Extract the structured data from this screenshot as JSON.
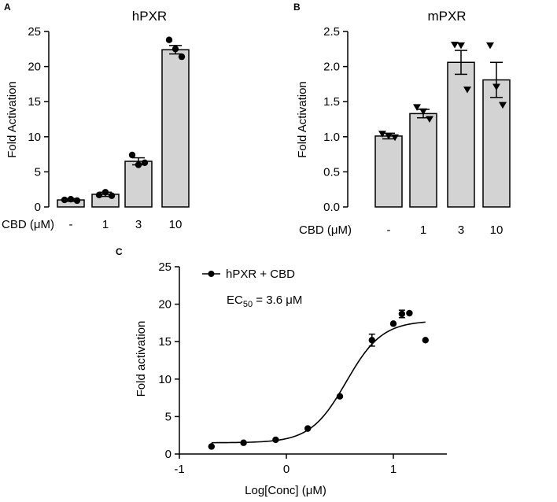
{
  "chart_data": [
    {
      "panel": "A",
      "type": "bar",
      "title": "hPXR",
      "ylabel": "Fold Activation",
      "xlabel": "CBD (μM)",
      "ylim": [
        0,
        25
      ],
      "yticks": [
        "0",
        "5",
        "10",
        "15",
        "20",
        "25"
      ],
      "yticks_values": [
        0,
        5,
        10,
        15,
        20,
        25
      ],
      "categories": [
        "-",
        "1",
        "3",
        "10"
      ],
      "values": [
        1.0,
        1.8,
        6.5,
        22.4
      ],
      "errors": [
        0.2,
        0.3,
        0.5,
        0.6
      ],
      "points": [
        [
          1.0,
          1.1,
          0.9
        ],
        [
          1.7,
          2.1,
          1.6
        ],
        [
          7.4,
          6.0,
          6.3
        ],
        [
          23.8,
          22.5,
          21.4
        ]
      ],
      "marker": "circle",
      "bar_color": "#d3d3d3"
    },
    {
      "panel": "B",
      "type": "bar",
      "title": "mPXR",
      "ylabel": "Fold Activation",
      "xlabel": "CBD (μM)",
      "ylim": [
        0,
        2.5
      ],
      "yticks": [
        "0.0",
        "0.5",
        "1.0",
        "1.5",
        "2.0",
        "2.5"
      ],
      "yticks_values": [
        0,
        0.5,
        1.0,
        1.5,
        2.0,
        2.5
      ],
      "categories": [
        "-",
        "1",
        "3",
        "10"
      ],
      "values": [
        1.01,
        1.33,
        2.06,
        1.81
      ],
      "errors": [
        0.04,
        0.06,
        0.17,
        0.25
      ],
      "points": [
        [
          1.04,
          1.01,
          0.99
        ],
        [
          1.42,
          1.36,
          1.25
        ],
        [
          2.31,
          2.3,
          1.67
        ],
        [
          2.3,
          1.71,
          1.45
        ]
      ],
      "marker": "triangle-down",
      "bar_color": "#d3d3d3"
    },
    {
      "panel": "C",
      "type": "line",
      "ylabel": "Fold activation",
      "xlabel": "Log[Conc] (μM)",
      "xlim": [
        -1,
        1.5
      ],
      "ylim": [
        0,
        25
      ],
      "xticks": [
        "-1",
        "0",
        "1"
      ],
      "xticks_values": [
        -1,
        0,
        1
      ],
      "yticks": [
        "0",
        "5",
        "10",
        "15",
        "20",
        "25"
      ],
      "yticks_values": [
        0,
        5,
        10,
        15,
        20,
        25
      ],
      "legend": "hPXR + CBD",
      "annotation": {
        "prefix": "EC",
        "subscript": "50",
        "suffix": " = 3.6 μM"
      },
      "series": [
        {
          "name": "hPXR + CBD",
          "x": [
            -0.7,
            -0.4,
            -0.1,
            0.2,
            0.5,
            0.8,
            1.0,
            1.08,
            1.15,
            1.3
          ],
          "y": [
            1.0,
            1.5,
            1.9,
            3.4,
            7.7,
            15.2,
            17.4,
            18.7,
            18.8,
            15.2
          ],
          "errors": [
            0,
            0,
            0,
            0,
            0,
            0.8,
            0,
            0.5,
            0,
            0
          ]
        }
      ],
      "fit": {
        "bottom": 1.5,
        "top": 17.8,
        "log_ec50": 0.56,
        "hill": 2.6
      }
    }
  ]
}
